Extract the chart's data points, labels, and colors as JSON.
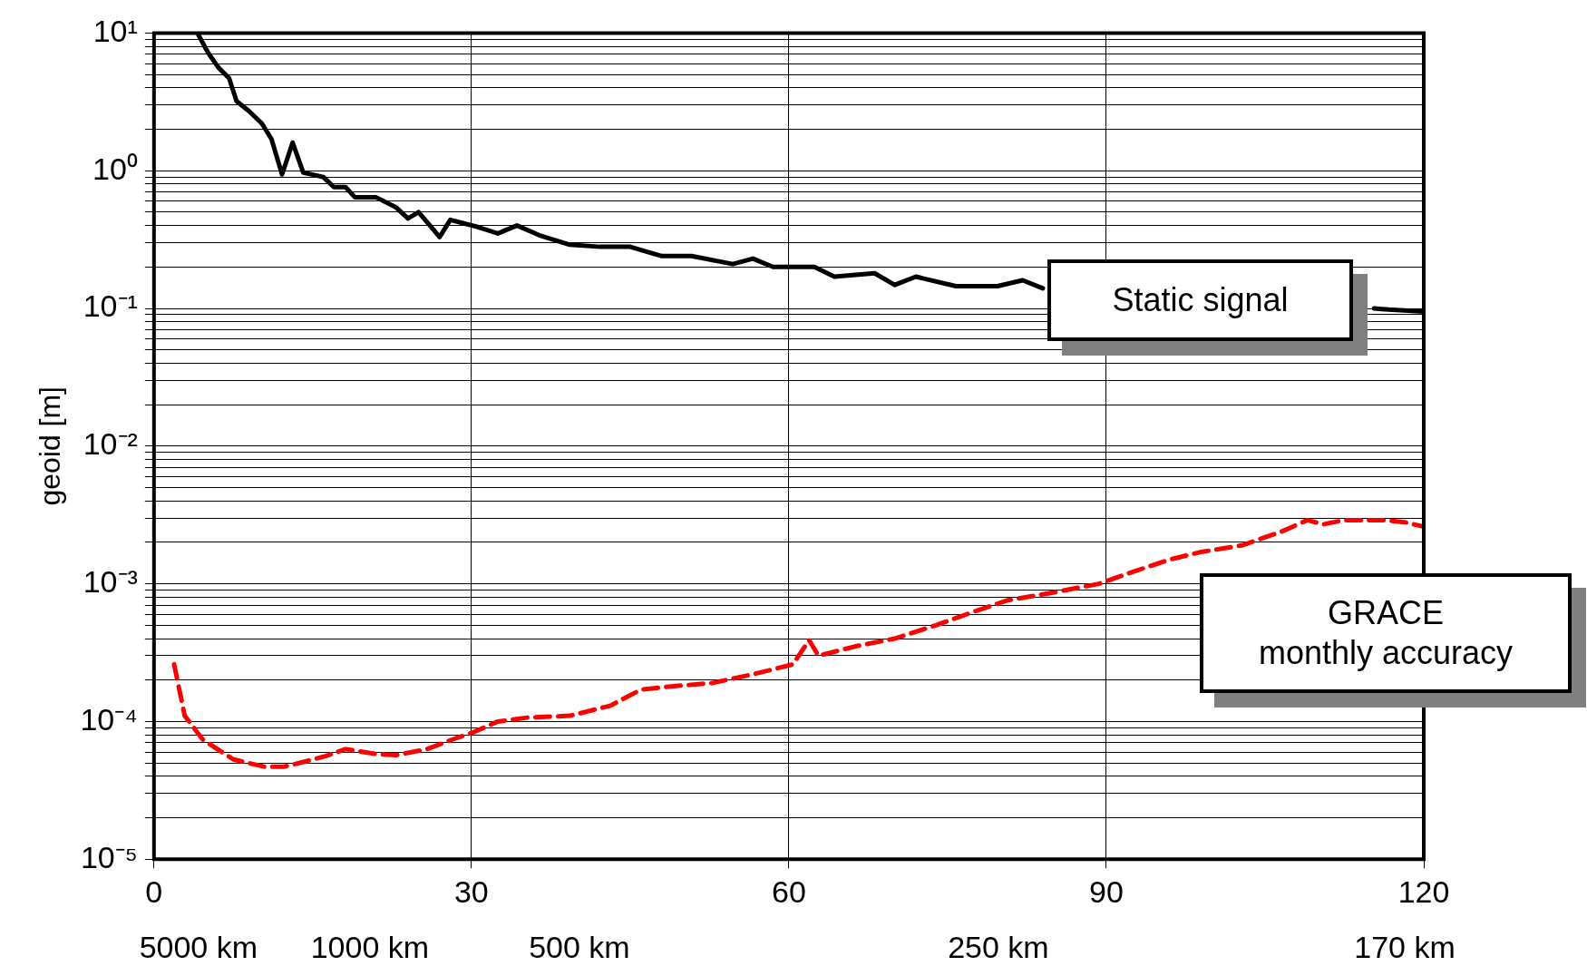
{
  "chart_data": {
    "type": "line",
    "ylabel": "geoid [m]",
    "log": "y",
    "grid": true,
    "legend": false,
    "marker": "none",
    "xlim": [
      0,
      120
    ],
    "xticks": [
      0,
      30,
      60,
      90,
      120
    ],
    "annotations": [
      "5000 km",
      "1000 km",
      "500 km",
      "250 km",
      "170 km"
    ],
    "ylim": [
      1e-05,
      10
    ],
    "yticks": [
      {
        "value": 1e-05,
        "label": "10⁻⁵"
      },
      {
        "value": 2e-05,
        "label": null
      },
      {
        "value": 3e-05,
        "label": null
      },
      {
        "value": 4e-05,
        "label": null
      },
      {
        "value": 5e-05,
        "label": null
      },
      {
        "value": 6e-05,
        "label": null
      },
      {
        "value": 7e-05,
        "label": null
      },
      {
        "value": 8e-05,
        "label": null
      },
      {
        "value": 9e-05,
        "label": null
      },
      {
        "value": 0.0001,
        "label": "10⁻⁴"
      },
      {
        "value": 0.0002,
        "label": null
      },
      {
        "value": 0.0003,
        "label": null
      },
      {
        "value": 0.0004,
        "label": null
      },
      {
        "value": 0.0005,
        "label": null
      },
      {
        "value": 0.0006,
        "label": null
      },
      {
        "value": 0.0007,
        "label": null
      },
      {
        "value": 0.0008,
        "label": null
      },
      {
        "value": 0.0009,
        "label": null
      },
      {
        "value": 0.001,
        "label": "10⁻³"
      },
      {
        "value": 0.002,
        "label": null
      },
      {
        "value": 0.003,
        "label": null
      },
      {
        "value": 0.004,
        "label": null
      },
      {
        "value": 0.005,
        "label": null
      },
      {
        "value": 0.006,
        "label": null
      },
      {
        "value": 0.007,
        "label": null
      },
      {
        "value": 0.008,
        "label": null
      },
      {
        "value": 0.009,
        "label": null
      },
      {
        "value": 0.01,
        "label": "10⁻²"
      },
      {
        "value": 0.02,
        "label": null
      },
      {
        "value": 0.03,
        "label": null
      },
      {
        "value": 0.04,
        "label": null
      },
      {
        "value": 0.05,
        "label": null
      },
      {
        "value": 0.06,
        "label": null
      },
      {
        "value": 0.07,
        "label": null
      },
      {
        "value": 0.08,
        "label": null
      },
      {
        "value": 0.09,
        "label": null
      },
      {
        "value": 0.1,
        "label": "10⁻¹"
      },
      {
        "value": 0.2,
        "label": null
      },
      {
        "value": 0.3,
        "label": null
      },
      {
        "value": 0.4,
        "label": null
      },
      {
        "value": 0.5,
        "label": null
      },
      {
        "value": 0.6,
        "label": null
      },
      {
        "value": 0.7,
        "label": null
      },
      {
        "value": 0.8,
        "label": null
      },
      {
        "value": 0.9,
        "label": null
      },
      {
        "value": 1,
        "label": "10⁰"
      },
      {
        "value": 2,
        "label": null
      },
      {
        "value": 3,
        "label": null
      },
      {
        "value": 4,
        "label": null
      },
      {
        "value": 5,
        "label": null
      },
      {
        "value": 6,
        "label": null
      },
      {
        "value": 7,
        "label": null
      },
      {
        "value": 8,
        "label": null
      },
      {
        "value": 9,
        "label": null
      },
      {
        "value": 10,
        "label": "10¹"
      }
    ],
    "series": [
      {
        "name": "Static signal",
        "color": "#000000",
        "line_style": "solid",
        "x": [
          4.1,
          5.1,
          6.1,
          7.1,
          7.8,
          9,
          10.2,
          11.1,
          12.1,
          13.1,
          14.1,
          16,
          17,
          18.1,
          19,
          21,
          22.9,
          24,
          25,
          27,
          28,
          30.6,
          32.5,
          34.3,
          36.4,
          39.3,
          42.2,
          45,
          48,
          50.8,
          54.7,
          56.6,
          58.5,
          62.4,
          64.3,
          68.1,
          70,
          72,
          75.8,
          79.7,
          82.1,
          84,
          100,
          115.3,
          116.7,
          120
        ],
        "values": [
          10,
          7.2,
          5.6,
          4.7,
          3.2,
          2.7,
          2.2,
          1.7,
          0.94,
          1.6,
          0.97,
          0.9,
          0.76,
          0.76,
          0.64,
          0.64,
          0.54,
          0.45,
          0.5,
          0.33,
          0.44,
          0.39,
          0.35,
          0.4,
          0.34,
          0.29,
          0.28,
          0.28,
          0.24,
          0.24,
          0.21,
          0.23,
          0.2,
          0.2,
          0.17,
          0.18,
          0.148,
          0.17,
          0.145,
          0.145,
          0.16,
          0.14,
          null,
          0.1,
          0.098,
          0.095
        ]
      },
      {
        "name": "GRACE\nmonthly accuracy",
        "color": "#ff0000",
        "line_style": "dashed",
        "x": [
          1.9,
          2.9,
          4.6,
          7.5,
          10.4,
          12.3,
          14.2,
          16.2,
          18.1,
          21,
          22.9,
          25.8,
          28.2,
          30.1,
          32.5,
          35.4,
          39.3,
          43.1,
          46,
          48.9,
          52.7,
          56.6,
          60.4,
          61.9,
          62.8,
          66.2,
          70,
          73.9,
          77.8,
          80.7,
          84.5,
          89.3,
          92.2,
          96,
          98.9,
          102.8,
          106.6,
          109,
          110.5,
          112.4,
          116.3,
          118.2,
          120
        ],
        "values": [
          0.00026,
          0.00011,
          7.4e-05,
          5.3e-05,
          4.7e-05,
          4.7e-05,
          5.1e-05,
          5.6e-05,
          6.3e-05,
          5.8e-05,
          5.7e-05,
          6.3e-05,
          7.4e-05,
          8.3e-05,
          0.0001,
          0.000107,
          0.00011,
          0.00013,
          0.00017,
          0.00018,
          0.00019,
          0.00022,
          0.00026,
          0.00039,
          0.0003,
          0.00035,
          0.0004,
          0.0005,
          0.00064,
          0.00076,
          0.00085,
          0.001,
          0.0012,
          0.0015,
          0.0017,
          0.0019,
          0.0024,
          0.0029,
          0.0027,
          0.0029,
          0.0029,
          0.0028,
          0.0026
        ]
      }
    ]
  }
}
